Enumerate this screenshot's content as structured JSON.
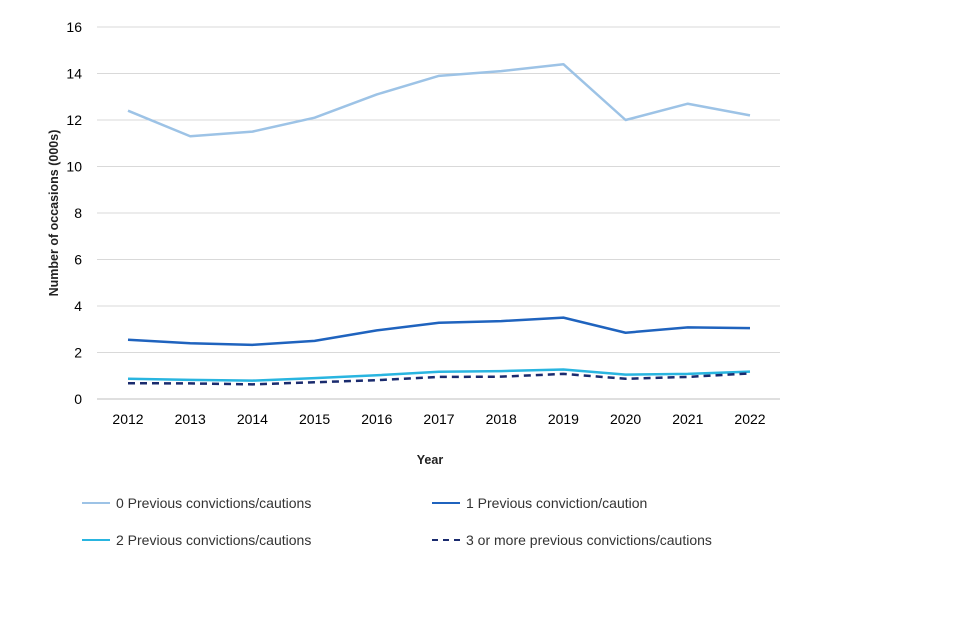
{
  "chart_data": {
    "type": "line",
    "title": "",
    "xlabel": "Year",
    "ylabel": "Number of occasions (000s)",
    "ylim": [
      0,
      16
    ],
    "yticks": [
      0,
      2,
      4,
      6,
      8,
      10,
      12,
      14,
      16
    ],
    "grid": true,
    "legend_position": "bottom",
    "categories": [
      "2012",
      "2013",
      "2014",
      "2015",
      "2016",
      "2017",
      "2018",
      "2019",
      "2020",
      "2021",
      "2022"
    ],
    "series": [
      {
        "name": "0 Previous convictions/cautions",
        "color": "#9dc3e6",
        "dashed": false,
        "values": [
          12.4,
          11.3,
          11.5,
          12.1,
          13.1,
          13.9,
          14.1,
          14.4,
          12.0,
          12.7,
          12.2
        ]
      },
      {
        "name": "1 Previous conviction/caution",
        "color": "#1f63be",
        "dashed": false,
        "values": [
          2.55,
          2.4,
          2.33,
          2.5,
          2.95,
          3.28,
          3.35,
          3.5,
          2.85,
          3.08,
          3.05
        ]
      },
      {
        "name": "2 Previous convictions/cautions",
        "color": "#29b5e0",
        "dashed": false,
        "values": [
          0.87,
          0.82,
          0.79,
          0.9,
          1.02,
          1.17,
          1.2,
          1.27,
          1.05,
          1.08,
          1.18
        ]
      },
      {
        "name": "3 or more previous convictions/cautions",
        "color": "#1a2b6e",
        "dashed": true,
        "values": [
          0.68,
          0.67,
          0.63,
          0.72,
          0.81,
          0.95,
          0.96,
          1.08,
          0.87,
          0.95,
          1.1
        ]
      }
    ]
  }
}
